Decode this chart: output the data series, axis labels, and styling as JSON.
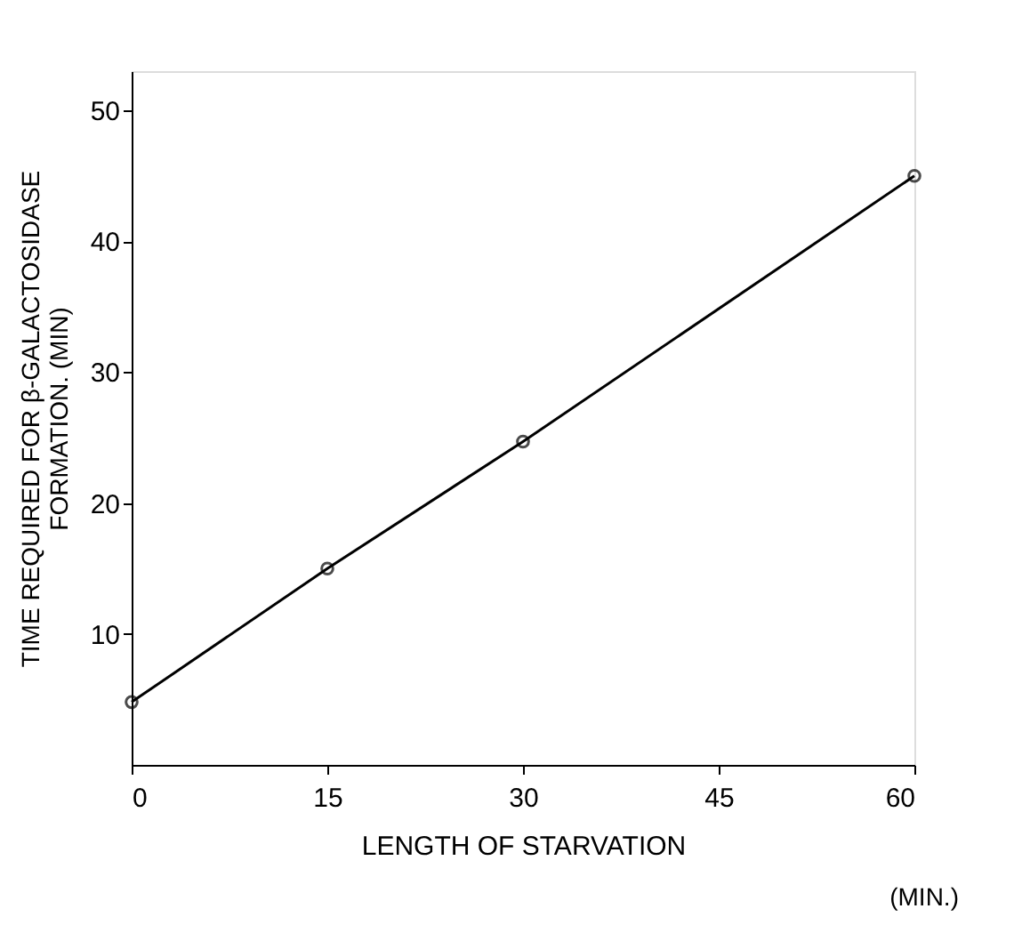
{
  "chart_data": {
    "type": "line",
    "xlabel": "LENGTH OF STARVATION",
    "ylabel": "TIME REQUIRED FOR β-GALACTOSIDASE\nFORMATION. (MIN)",
    "annotations": [
      "(MIN.)"
    ],
    "x": [
      0,
      15,
      30,
      60
    ],
    "series": [
      {
        "color": "#000000",
        "values": [
          4.8,
          15,
          24.7,
          45
        ]
      }
    ],
    "xlim": [
      0,
      60
    ],
    "xticks": [
      0,
      15,
      30,
      45,
      60
    ],
    "ylim": [
      0,
      53
    ],
    "yticks": [
      10,
      20,
      30,
      40,
      50
    ],
    "grid": false,
    "marker": "circle",
    "line_style": "solid"
  }
}
